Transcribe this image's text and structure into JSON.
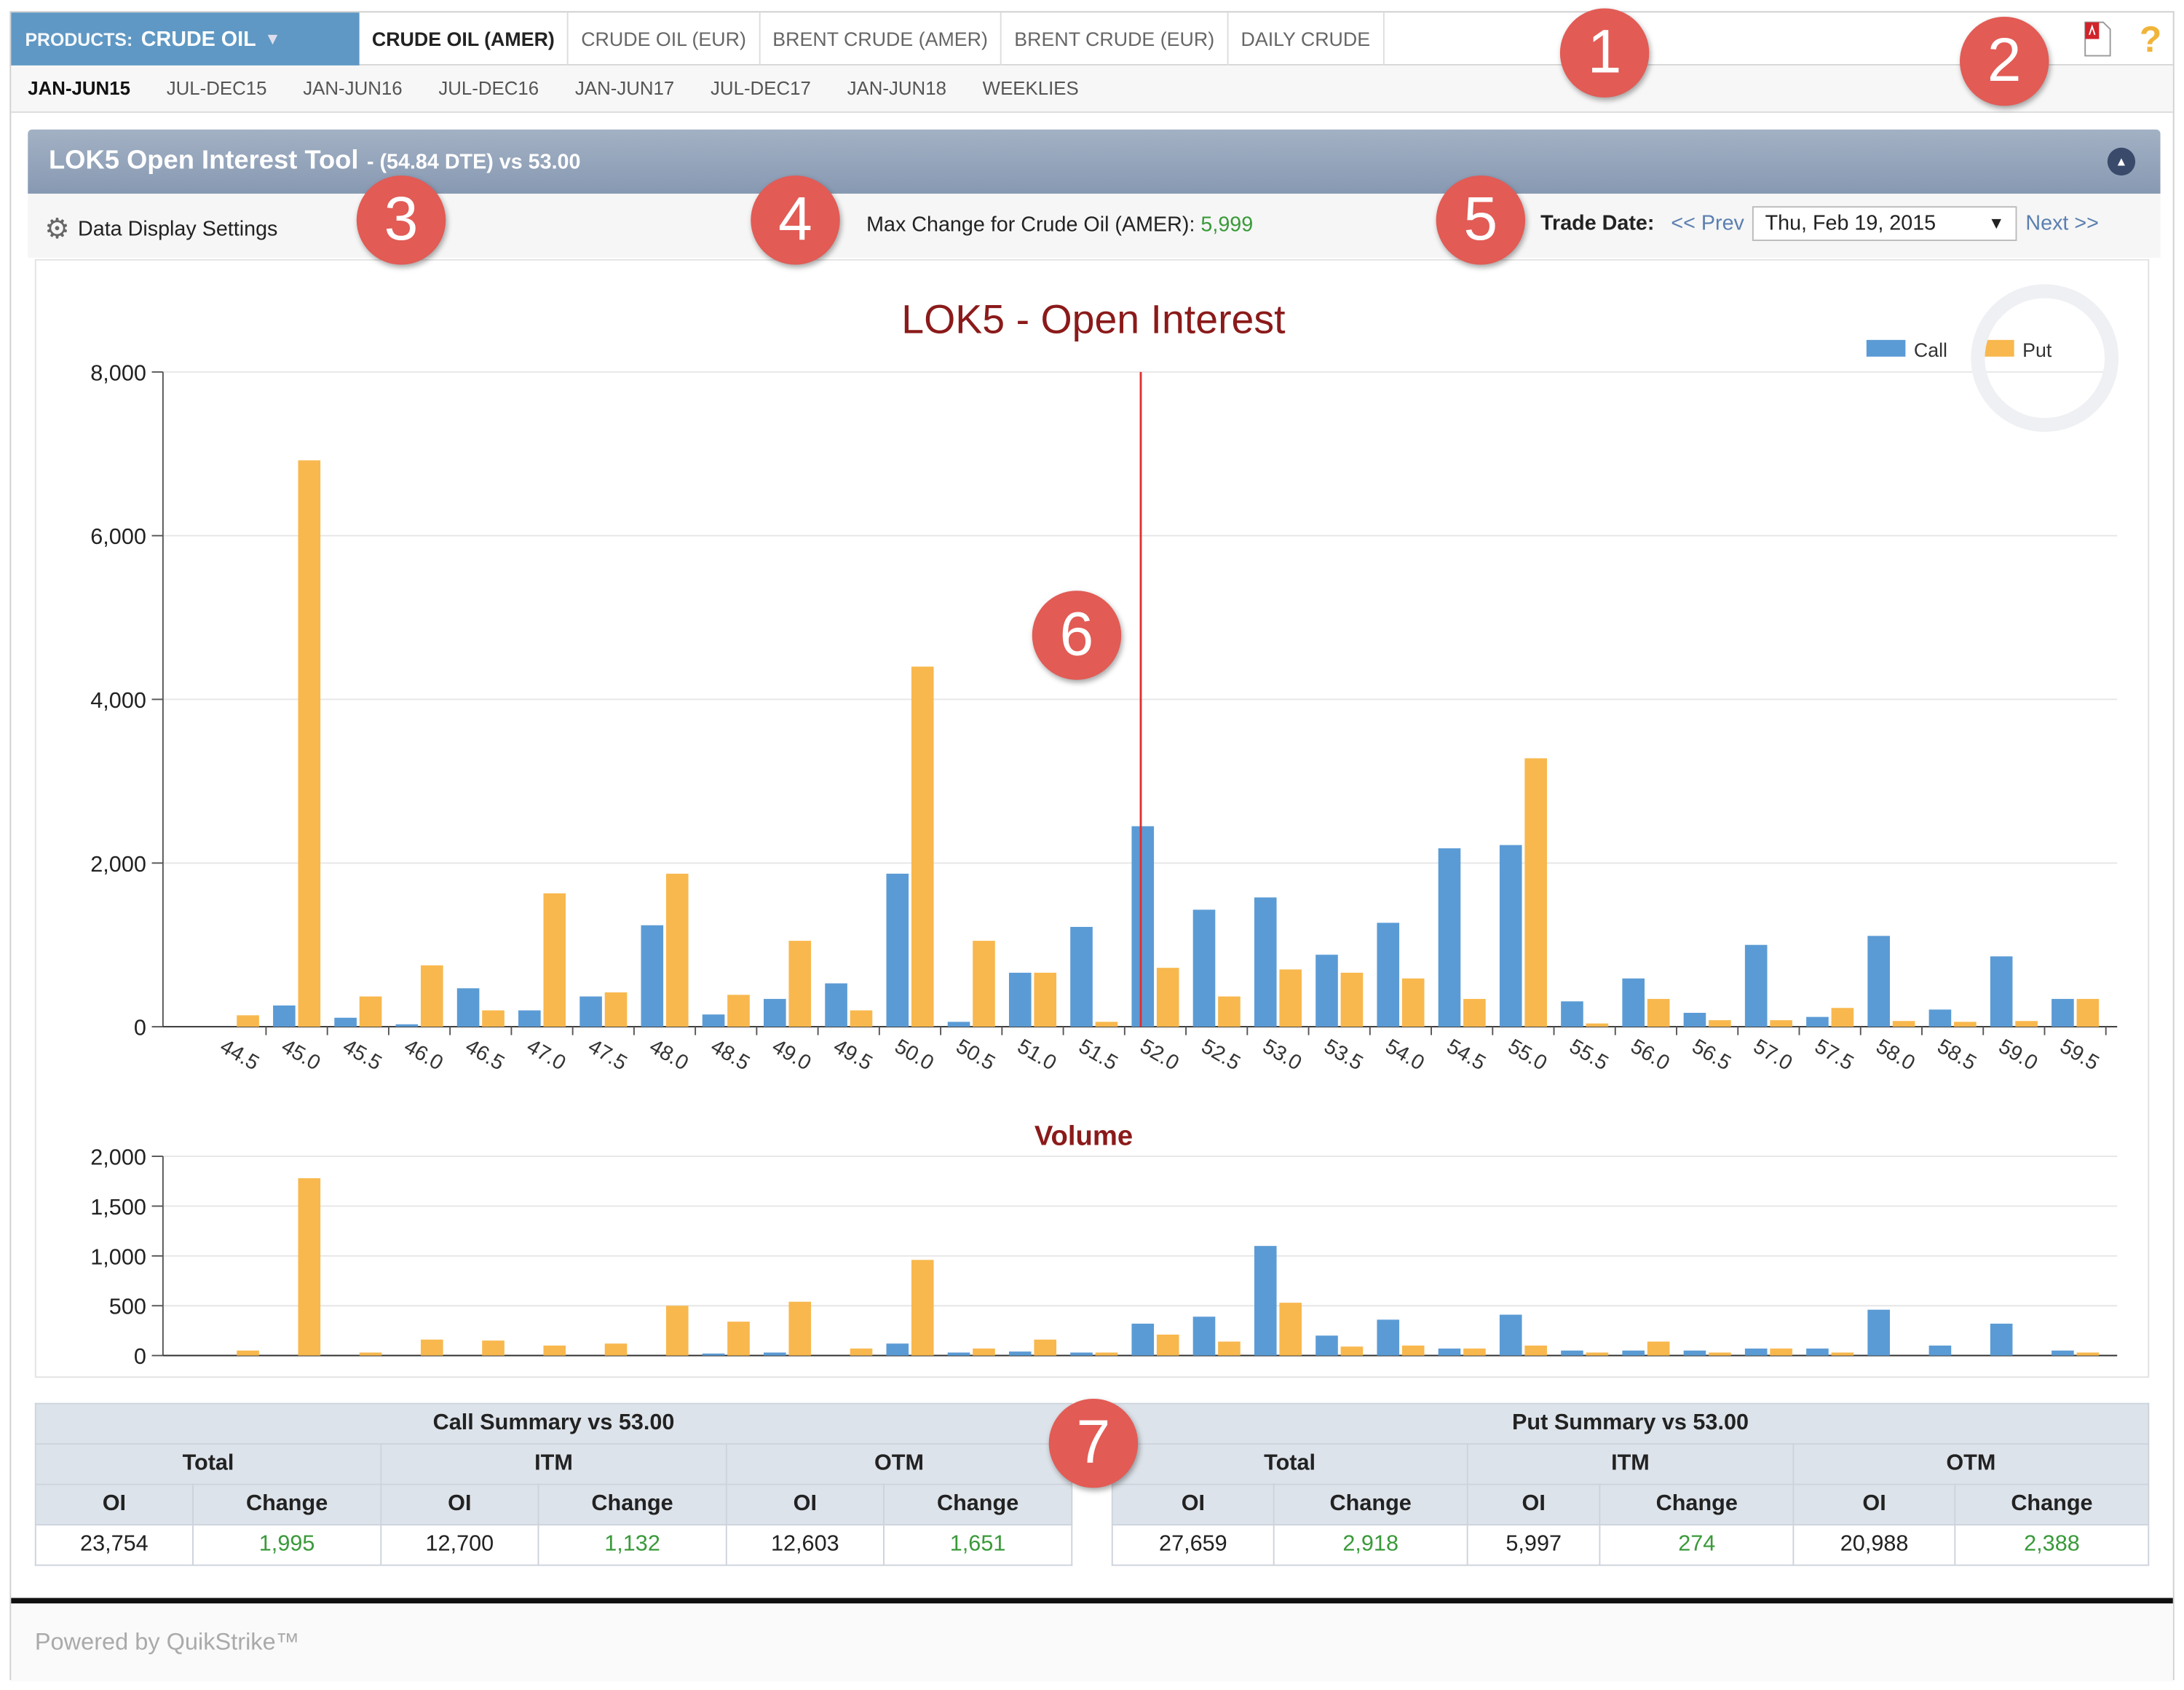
{
  "header": {
    "products_label": "PRODUCTS:",
    "product": "CRUDE OIL",
    "tabs": [
      "CRUDE OIL (AMER)",
      "CRUDE OIL (EUR)",
      "BRENT CRUDE (AMER)",
      "BRENT CRUDE (EUR)",
      "DAILY CRUDE"
    ],
    "expiries": [
      "JAN-JUN15",
      "JUL-DEC15",
      "JAN-JUN16",
      "JUL-DEC16",
      "JAN-JUN17",
      "JUL-DEC17",
      "JAN-JUN18",
      "WEEKLIES"
    ],
    "icons": [
      "pdf-icon",
      "help-icon"
    ]
  },
  "panel": {
    "title": "LOK5 Open Interest Tool",
    "subtitle": "- (54.84 DTE) vs 53.00"
  },
  "settings": {
    "label": "Data Display Settings",
    "max_change_label": "Max Change for Crude Oil (AMER):",
    "max_change_value": "5,999",
    "trade_date_label": "Trade Date:",
    "prev": "<< Prev",
    "date": "Thu, Feb 19, 2015",
    "next": "Next >>"
  },
  "colors": {
    "call": "#5b9bd5",
    "put": "#f8b84e",
    "title": "#8b1a1a",
    "marker": "#e03030"
  },
  "chart_data": [
    {
      "type": "bar",
      "title": "LOK5 - Open Interest",
      "ylim": [
        0,
        8000
      ],
      "yticks": [
        "0",
        "2,000",
        "4,000",
        "6,000",
        "8,000"
      ],
      "ytick_values": [
        0,
        2000,
        4000,
        6000,
        8000
      ],
      "legend": [
        "Call",
        "Put"
      ],
      "legend_position": "top-right",
      "categories": [
        "44.5",
        "45.0",
        "45.5",
        "46.0",
        "46.5",
        "47.0",
        "47.5",
        "48.0",
        "48.5",
        "49.0",
        "49.5",
        "50.0",
        "50.5",
        "51.0",
        "51.5",
        "52.0",
        "52.5",
        "53.0",
        "53.5",
        "54.0",
        "54.5",
        "55.0",
        "55.5",
        "56.0",
        "56.5",
        "57.0",
        "57.5",
        "58.0",
        "58.5",
        "59.0",
        "59.5"
      ],
      "series": [
        {
          "name": "Call",
          "values": [
            0,
            260,
            110,
            30,
            470,
            200,
            370,
            1240,
            150,
            340,
            530,
            1870,
            60,
            660,
            1220,
            2450,
            1430,
            1580,
            880,
            1270,
            2180,
            2220,
            310,
            590,
            170,
            1000,
            120,
            1110,
            210,
            860,
            340
          ]
        },
        {
          "name": "Put",
          "values": [
            140,
            6920,
            370,
            750,
            200,
            1630,
            420,
            1870,
            390,
            1050,
            200,
            4400,
            1050,
            660,
            60,
            720,
            370,
            700,
            660,
            590,
            340,
            3280,
            40,
            340,
            80,
            80,
            230,
            70,
            60,
            70,
            340
          ]
        }
      ]
    },
    {
      "type": "bar",
      "title": "Volume",
      "ylim": [
        0,
        2000
      ],
      "yticks": [
        "0",
        "500",
        "1,000",
        "1,500",
        "2,000"
      ],
      "ytick_values": [
        0,
        500,
        1000,
        1500,
        2000
      ],
      "series": [
        {
          "name": "Call",
          "values": [
            0,
            0,
            0,
            0,
            0,
            0,
            0,
            0,
            20,
            30,
            0,
            120,
            30,
            40,
            30,
            320,
            390,
            1100,
            200,
            360,
            70,
            410,
            50,
            50,
            50,
            70,
            70,
            460,
            100,
            320,
            50
          ]
        },
        {
          "name": "Put",
          "values": [
            50,
            1780,
            30,
            160,
            150,
            100,
            120,
            500,
            340,
            540,
            70,
            960,
            70,
            160,
            30,
            210,
            140,
            530,
            90,
            100,
            70,
            100,
            30,
            140,
            30,
            70,
            30,
            0,
            0,
            0,
            30
          ]
        }
      ]
    }
  ],
  "call_summary": {
    "title": "Call Summary vs 53.00",
    "groups": [
      "Total",
      "ITM",
      "OTM"
    ],
    "cols": [
      "OI",
      "Change",
      "OI",
      "Change",
      "OI",
      "Change"
    ],
    "values": [
      "23,754",
      "1,995",
      "12,700",
      "1,132",
      "12,603",
      "1,651"
    ]
  },
  "put_summary": {
    "title": "Put Summary vs 53.00",
    "groups": [
      "Total",
      "ITM",
      "OTM"
    ],
    "cols": [
      "OI",
      "Change",
      "OI",
      "Change",
      "OI",
      "Change"
    ],
    "values": [
      "27,659",
      "2,918",
      "5,997",
      "274",
      "20,988",
      "2,388"
    ]
  },
  "footer": "Powered by QuikStrike™",
  "callouts": [
    "1",
    "2",
    "3",
    "4",
    "5",
    "6",
    "7"
  ]
}
